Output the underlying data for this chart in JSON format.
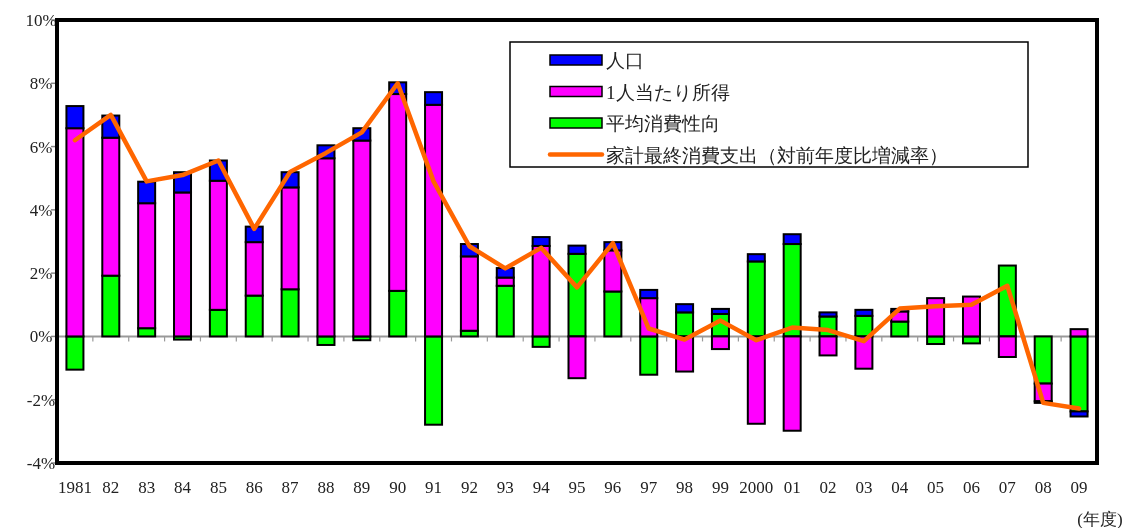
{
  "chart_data": {
    "type": "bar",
    "stacked": true,
    "categories": [
      "1981",
      "82",
      "83",
      "84",
      "85",
      "86",
      "87",
      "88",
      "89",
      "90",
      "91",
      "92",
      "93",
      "94",
      "95",
      "96",
      "97",
      "98",
      "99",
      "2000",
      "01",
      "02",
      "03",
      "04",
      "05",
      "06",
      "07",
      "08",
      "09"
    ],
    "series": [
      {
        "name": "平均消費性向",
        "color": "#00ff00",
        "values": [
          -1.05,
          1.92,
          0.26,
          -0.1,
          0.84,
          1.29,
          1.49,
          -0.27,
          -0.12,
          1.44,
          -2.79,
          0.18,
          1.6,
          -0.33,
          2.61,
          1.42,
          -1.21,
          0.76,
          0.71,
          2.37,
          2.92,
          0.63,
          0.65,
          0.47,
          -0.24,
          -0.22,
          2.24,
          -1.49,
          -2.37
        ]
      },
      {
        "name": "1人当たり所得",
        "color": "#ff00ff",
        "values": [
          6.58,
          4.36,
          3.95,
          4.55,
          4.08,
          1.69,
          3.22,
          5.63,
          6.19,
          6.22,
          7.32,
          2.35,
          0.26,
          2.86,
          -1.32,
          1.3,
          1.21,
          -1.11,
          -0.4,
          -2.76,
          -2.98,
          -0.6,
          -1.02,
          0.32,
          1.21,
          1.26,
          -0.65,
          -0.56,
          0.23
        ]
      },
      {
        "name": "人口",
        "color": "#0000ff",
        "values": [
          0.7,
          0.7,
          0.68,
          0.64,
          0.64,
          0.49,
          0.48,
          0.41,
          0.39,
          0.37,
          0.4,
          0.39,
          0.3,
          0.28,
          0.26,
          0.26,
          0.26,
          0.26,
          0.16,
          0.23,
          0.31,
          0.13,
          0.19,
          0.08,
          0,
          0,
          0,
          -0.05,
          -0.16
        ]
      },
      {
        "name": "家計最終消費支出（対前年度比増減率）",
        "type": "line",
        "color": "#ff6600",
        "values": [
          6.2,
          7.0,
          4.9,
          5.1,
          5.56,
          3.4,
          5.2,
          5.8,
          6.45,
          8.0,
          4.9,
          2.85,
          2.15,
          2.8,
          1.55,
          2.95,
          0.25,
          -0.1,
          0.5,
          -0.12,
          0.28,
          0.2,
          -0.15,
          0.88,
          0.95,
          1.0,
          1.6,
          -2.1,
          -2.28
        ]
      }
    ],
    "ylim": [
      -4,
      10
    ],
    "yticks": [
      {
        "value": -4,
        "label": "-4%"
      },
      {
        "value": -2,
        "label": "-2%"
      },
      {
        "value": 0,
        "label": "0%"
      },
      {
        "value": 2,
        "label": "2%"
      },
      {
        "value": 4,
        "label": "4%"
      },
      {
        "value": 6,
        "label": "6%"
      },
      {
        "value": 8,
        "label": "8%"
      },
      {
        "value": 10,
        "label": "10%"
      }
    ],
    "legend": "top right",
    "annotations": [
      "(年度)"
    ]
  }
}
